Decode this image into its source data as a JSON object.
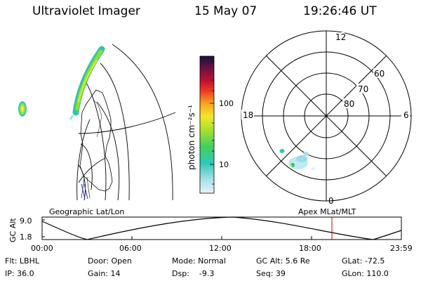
{
  "header": {
    "instrument": "Ultraviolet Imager",
    "date": "15 May 07",
    "time": "19:26:46 UT"
  },
  "geo_map": {
    "label": "Geographic Lat/Lon"
  },
  "colorbar": {
    "unit_label": "photon cm⁻²s⁻¹",
    "tick_labels": [
      "100",
      "10"
    ]
  },
  "polar_plot": {
    "label": "Apex MLat/MLT",
    "mlt_labels": [
      "12",
      "18",
      "6",
      "0"
    ],
    "lat_labels": [
      "60",
      "70",
      "80"
    ]
  },
  "altitude_plot": {
    "y_label": "GC Alt",
    "y_ticks": [
      "9.0",
      "1.8"
    ],
    "x_ticks": [
      "00:00",
      "06:00",
      "12:00",
      "18:00",
      "23:59"
    ],
    "marker_color": "#cc0000"
  },
  "info": {
    "flt": "Flt: LBHL",
    "door": "Door: Open",
    "mode": "Mode: Normal",
    "gc_alt": "GC Alt: 5.6 Re",
    "glat": "GLat: -72.5",
    "ip": "IP: 36.0",
    "gain": "Gain: 14",
    "dsp": "Dsp:    -9.3",
    "seq": "Seq: 39",
    "glon": "GLon: 110.0"
  }
}
